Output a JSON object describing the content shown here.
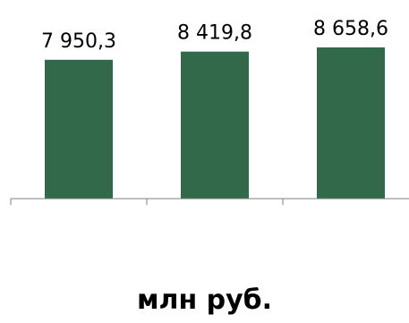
{
  "chart_data": {
    "type": "bar",
    "categories": [
      "",
      "",
      ""
    ],
    "values": [
      7950.3,
      8419.8,
      8658.6
    ],
    "value_labels": [
      "7 950,3",
      "8 419,8",
      "8 658,6"
    ],
    "ylim": [
      0,
      8658.6
    ],
    "bar_color": "#31694a",
    "axis_color": "#7f7f7f",
    "grid": false,
    "legend": "none"
  },
  "caption": "млн руб."
}
